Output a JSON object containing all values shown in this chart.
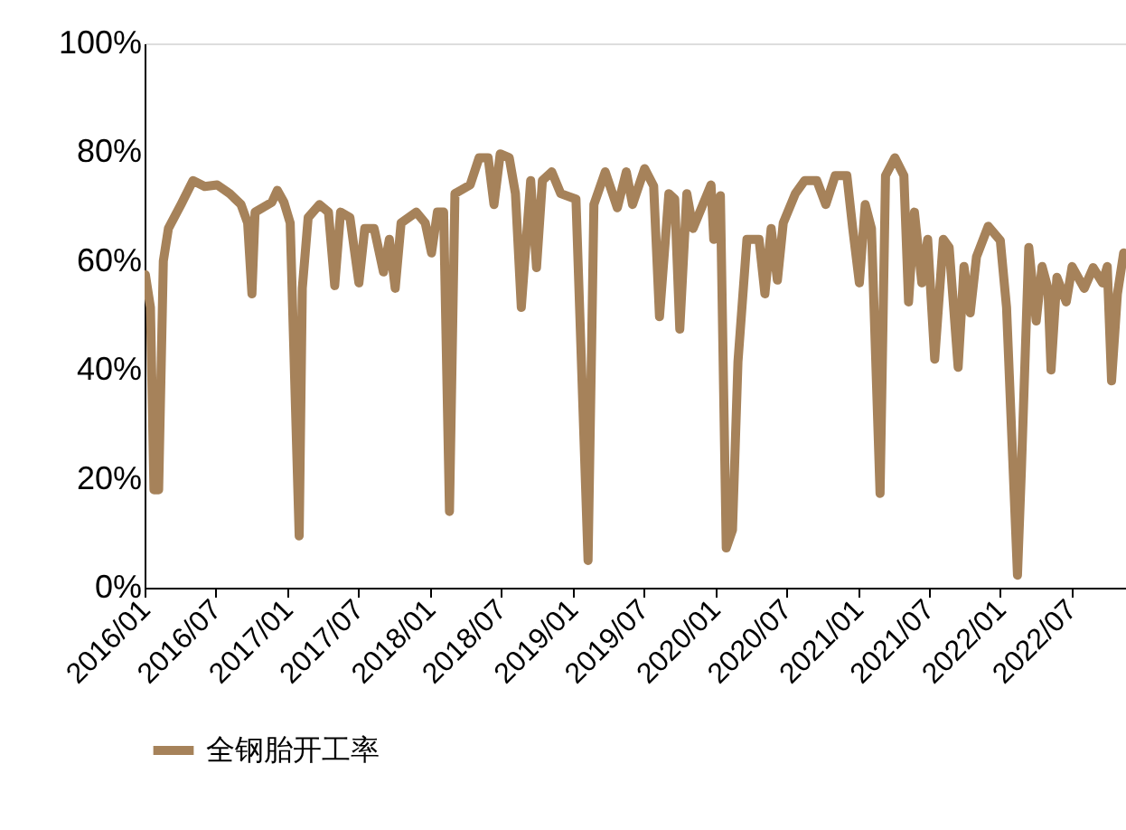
{
  "chart_data": {
    "type": "line",
    "x": [
      "2016-01-03",
      "2016-01-16",
      "2016-01-25",
      "2016-02-06",
      "2016-02-18",
      "2016-03-02",
      "2016-04-04",
      "2016-05-04",
      "2016-06-03",
      "2016-07-05",
      "2016-08-06",
      "2016-09-04",
      "2016-09-21",
      "2016-10-02",
      "2016-10-10",
      "2016-11-22",
      "2016-12-06",
      "2016-12-23",
      "2017-01-08",
      "2017-01-31",
      "2017-02-08",
      "2017-02-23",
      "2017-03-24",
      "2017-04-16",
      "2017-05-02",
      "2017-05-17",
      "2017-06-10",
      "2017-07-03",
      "2017-07-18",
      "2017-08-11",
      "2017-09-04",
      "2017-09-19",
      "2017-10-04",
      "2017-10-19",
      "2017-11-27",
      "2017-12-20",
      "2018-01-05",
      "2018-01-20",
      "2018-02-05",
      "2018-02-20",
      "2018-03-06",
      "2018-04-14",
      "2018-05-07",
      "2018-05-30",
      "2018-06-14",
      "2018-06-30",
      "2018-07-23",
      "2018-08-08",
      "2018-08-23",
      "2018-09-16",
      "2018-10-01",
      "2018-10-16",
      "2018-11-09",
      "2018-12-02",
      "2019-01-10",
      "2019-02-10",
      "2019-02-25",
      "2019-03-26",
      "2019-04-26",
      "2019-05-19",
      "2019-06-04",
      "2019-07-05",
      "2019-07-28",
      "2019-08-12",
      "2019-09-05",
      "2019-09-20",
      "2019-10-03",
      "2019-10-21",
      "2019-11-06",
      "2019-12-07",
      "2019-12-22",
      "2019-12-29",
      "2020-01-15",
      "2020-01-30",
      "2020-02-15",
      "2020-02-29",
      "2020-03-23",
      "2020-04-23",
      "2020-05-08",
      "2020-05-24",
      "2020-06-09",
      "2020-06-24",
      "2020-07-25",
      "2020-08-18",
      "2020-09-18",
      "2020-10-11",
      "2020-11-04",
      "2020-12-04",
      "2020-12-19",
      "2021-01-05",
      "2021-01-20",
      "2021-02-05",
      "2021-02-27",
      "2021-03-13",
      "2021-04-06",
      "2021-04-29",
      "2021-05-11",
      "2021-05-26",
      "2021-06-14",
      "2021-06-29",
      "2021-07-17",
      "2021-08-08",
      "2021-08-23",
      "2021-09-15",
      "2021-09-30",
      "2021-10-16",
      "2021-11-01",
      "2021-12-01",
      "2022-01-01",
      "2022-01-17",
      "2022-02-14",
      "2022-02-24",
      "2022-03-15",
      "2022-04-03",
      "2022-04-18",
      "2022-05-03",
      "2022-05-11",
      "2022-05-26",
      "2022-06-19",
      "2022-07-04",
      "2022-08-04",
      "2022-08-27",
      "2022-09-20",
      "2022-10-02",
      "2022-10-13",
      "2022-10-28",
      "2022-11-13"
    ],
    "series": [
      {
        "name": "全钢胎开工率",
        "color": "#a6825a",
        "values": [
          57.5,
          51.5,
          18,
          18,
          60,
          66,
          70.5,
          74.8,
          73.7,
          74,
          72.4,
          70.4,
          67,
          54,
          69,
          70.8,
          73,
          70.8,
          67,
          9.5,
          55,
          68,
          70.4,
          69,
          55.5,
          69,
          68,
          56,
          66,
          66,
          58,
          64,
          55,
          67,
          69,
          67,
          61.5,
          69,
          69,
          14,
          72.4,
          74,
          79,
          79,
          70.4,
          79.7,
          79,
          72.4,
          51.5,
          74.8,
          58.8,
          74.8,
          76.4,
          72.4,
          71.4,
          5,
          70.4,
          76.4,
          69.8,
          76.4,
          70.4,
          77,
          73.8,
          49.8,
          72.4,
          71.4,
          47.5,
          72.4,
          66,
          71.4,
          74,
          64,
          72,
          7.3,
          10.6,
          41.5,
          64,
          64,
          54,
          66,
          56.5,
          67,
          72.4,
          74.8,
          74.8,
          70.4,
          75.7,
          75.7,
          66,
          56,
          70.4,
          66,
          17.3,
          75.7,
          79,
          75.7,
          52.5,
          69,
          56,
          64,
          42,
          64,
          62.5,
          40.5,
          59,
          50.5,
          60.8,
          66.4,
          63.8,
          51.5,
          2.3,
          21.6,
          62.5,
          49,
          59,
          55,
          40,
          57,
          52.5,
          59,
          55,
          58.8,
          56,
          59,
          38,
          54,
          61.5
        ]
      }
    ],
    "xlim": [
      "2016-01-01",
      "2022-11-19"
    ],
    "xticks": [
      {
        "value": "2016-01-01",
        "label": "2016/01"
      },
      {
        "value": "2016-07-01",
        "label": "2016/07"
      },
      {
        "value": "2017-01-01",
        "label": "2017/01"
      },
      {
        "value": "2017-07-01",
        "label": "2017/07"
      },
      {
        "value": "2018-01-01",
        "label": "2018/01"
      },
      {
        "value": "2018-07-01",
        "label": "2018/07"
      },
      {
        "value": "2019-01-01",
        "label": "2019/01"
      },
      {
        "value": "2019-07-01",
        "label": "2019/07"
      },
      {
        "value": "2020-01-01",
        "label": "2020/01"
      },
      {
        "value": "2020-07-01",
        "label": "2020/07"
      },
      {
        "value": "2021-01-01",
        "label": "2021/01"
      },
      {
        "value": "2021-07-01",
        "label": "2021/07"
      },
      {
        "value": "2022-01-01",
        "label": "2022/01"
      },
      {
        "value": "2022-07-01",
        "label": "2022/07"
      }
    ],
    "ylim": [
      0,
      100
    ],
    "yticks": [
      {
        "value": 0,
        "label": "0%"
      },
      {
        "value": 20,
        "label": "20%"
      },
      {
        "value": 40,
        "label": "40%"
      },
      {
        "value": 60,
        "label": "60%"
      },
      {
        "value": 80,
        "label": "80%"
      },
      {
        "value": 100,
        "label": "100%"
      }
    ],
    "grid": false,
    "legend": "bottom",
    "marker": "none",
    "line_style": "solid"
  }
}
